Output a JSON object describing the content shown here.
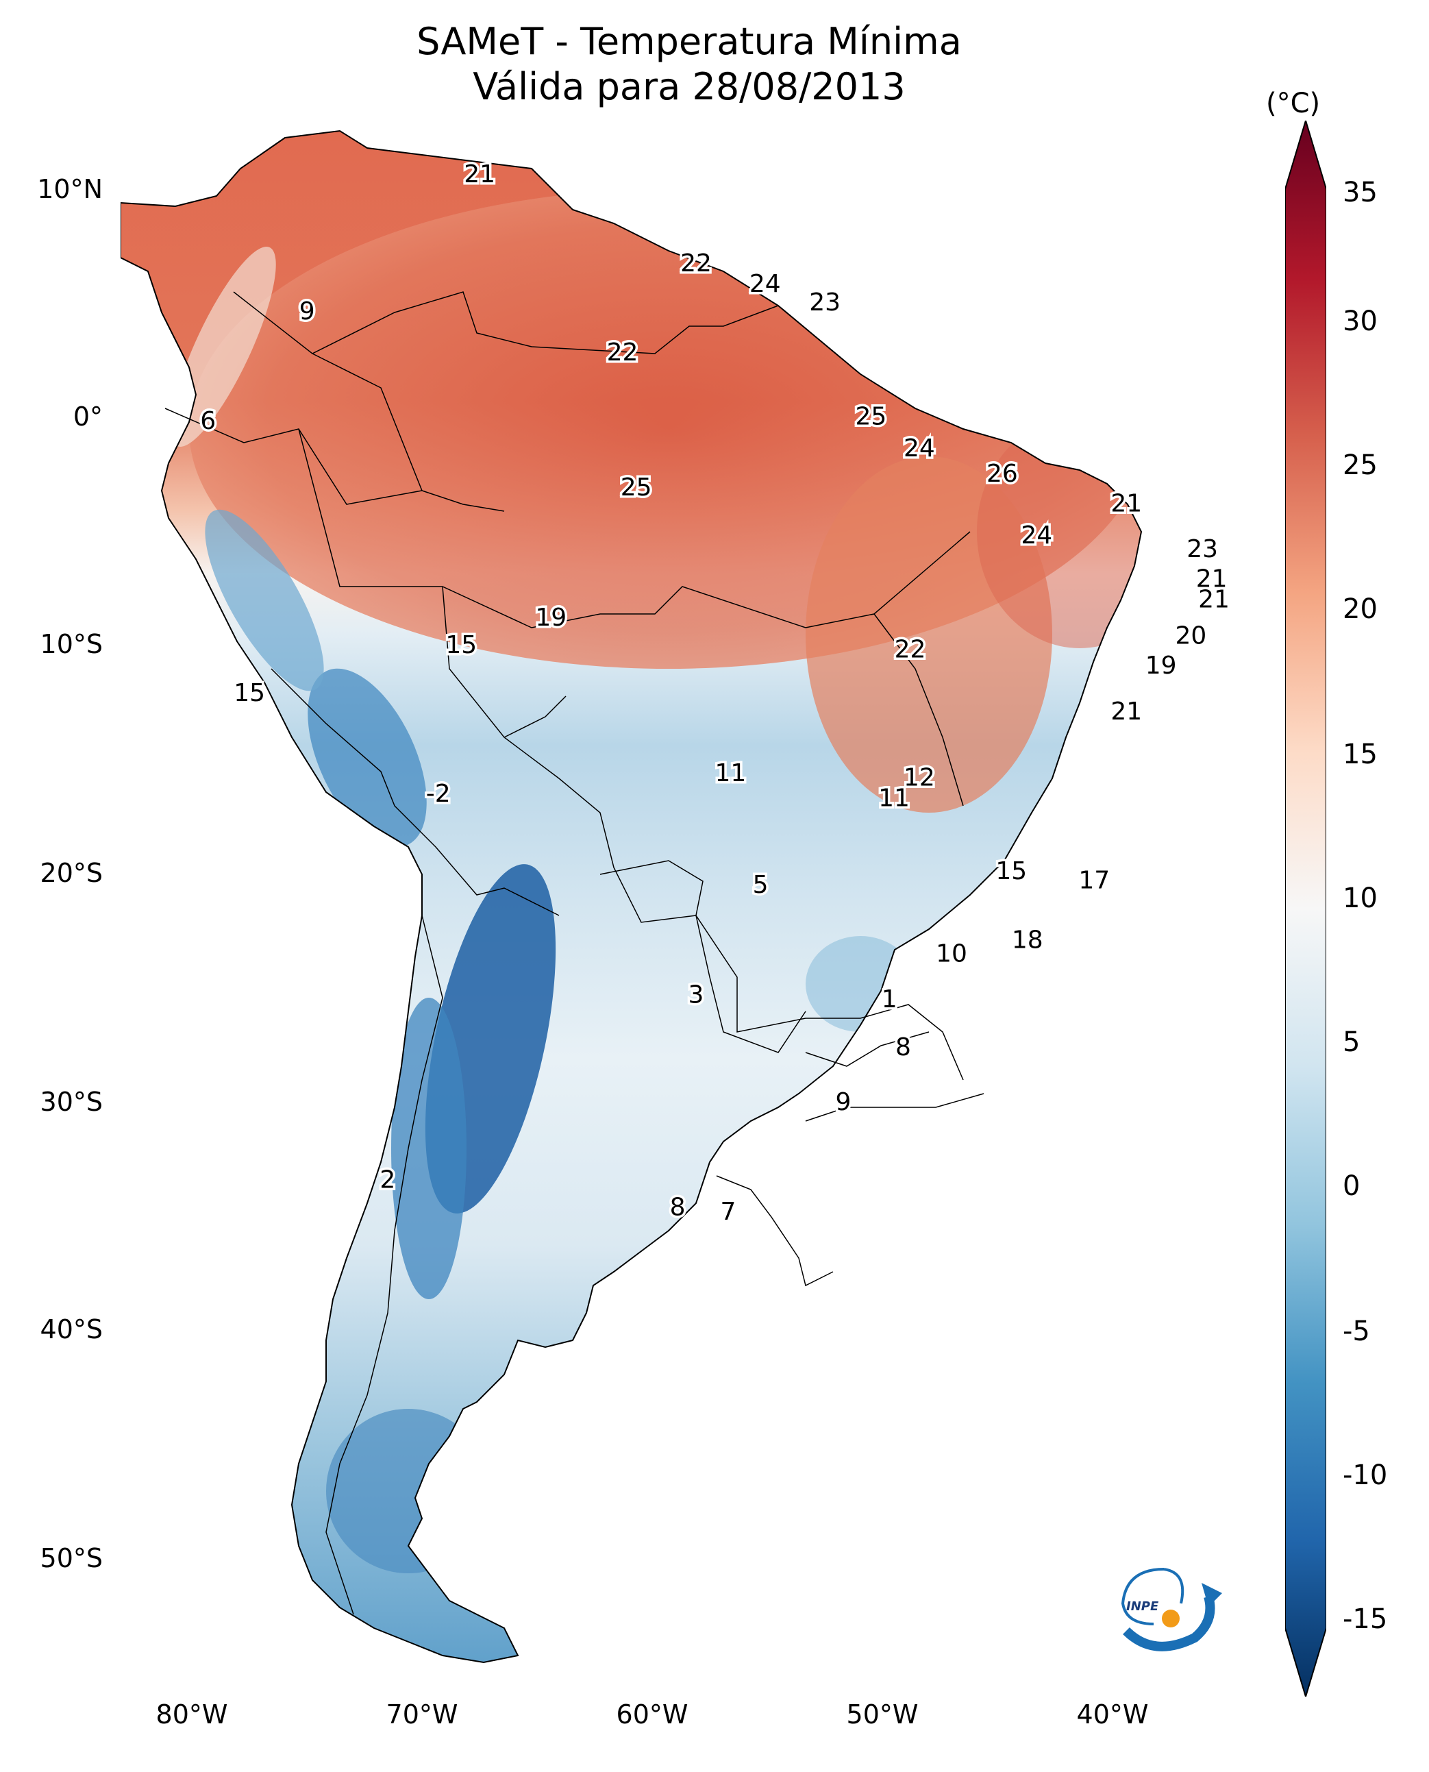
{
  "title": {
    "line1": "SAMeT - Temperatura Mínima",
    "line2": "Válida para 28/08/2013"
  },
  "latitude_labels": [
    "10°N",
    "0°",
    "10°S",
    "20°S",
    "30°S",
    "40°S",
    "50°S"
  ],
  "longitude_labels": [
    "80°W",
    "70°W",
    "60°W",
    "50°W",
    "40°W"
  ],
  "colorbar": {
    "unit": "(°C)",
    "ticks": [
      "35",
      "30",
      "25",
      "20",
      "15",
      "10",
      "5",
      "0",
      "-5",
      "-10",
      "-15"
    ],
    "colors": [
      "#67001f",
      "#b2182b",
      "#d6604d",
      "#f4a582",
      "#fddbc7",
      "#f7f7f7",
      "#d1e5f0",
      "#92c5de",
      "#4393c3",
      "#2166ac",
      "#053061"
    ]
  },
  "station_values": [
    {
      "label": "21",
      "lon": -67,
      "lat": 10.6
    },
    {
      "label": "9",
      "lon": -74.5,
      "lat": 4.6
    },
    {
      "label": "22",
      "lon": -57.6,
      "lat": 6.7
    },
    {
      "label": "24",
      "lon": -54.6,
      "lat": 5.8
    },
    {
      "label": "23",
      "lon": -52,
      "lat": 5.0
    },
    {
      "label": "22",
      "lon": -60.8,
      "lat": 2.8
    },
    {
      "label": "6",
      "lon": -78.8,
      "lat": -0.2
    },
    {
      "label": "25",
      "lon": -50,
      "lat": 0.0
    },
    {
      "label": "24",
      "lon": -47.9,
      "lat": -1.4
    },
    {
      "label": "26",
      "lon": -44.3,
      "lat": -2.5
    },
    {
      "label": "25",
      "lon": -60.2,
      "lat": -3.1
    },
    {
      "label": "21",
      "lon": -38.9,
      "lat": -3.8
    },
    {
      "label": "24",
      "lon": -42.8,
      "lat": -5.2
    },
    {
      "label": "23",
      "lon": -35.6,
      "lat": -5.8
    },
    {
      "label": "21",
      "lon": -35.2,
      "lat": -7.1
    },
    {
      "label": "21",
      "lon": -35.1,
      "lat": -8.0
    },
    {
      "label": "19",
      "lon": -63.9,
      "lat": -8.8
    },
    {
      "label": "20",
      "lon": -36.1,
      "lat": -9.6
    },
    {
      "label": "15",
      "lon": -67.8,
      "lat": -10.0
    },
    {
      "label": "22",
      "lon": -48.3,
      "lat": -10.2
    },
    {
      "label": "19",
      "lon": -37.4,
      "lat": -10.9
    },
    {
      "label": "15",
      "lon": -77,
      "lat": -12.1
    },
    {
      "label": "21",
      "lon": -38.9,
      "lat": -12.9
    },
    {
      "label": "11",
      "lon": -56.1,
      "lat": -15.6
    },
    {
      "label": "12",
      "lon": -47.9,
      "lat": -15.8
    },
    {
      "label": "11",
      "lon": -49.0,
      "lat": -16.7
    },
    {
      "label": "-2",
      "lon": -68.8,
      "lat": -16.5
    },
    {
      "label": "15",
      "lon": -43.9,
      "lat": -19.9
    },
    {
      "label": "17",
      "lon": -40.3,
      "lat": -20.3
    },
    {
      "label": "5",
      "lon": -54.8,
      "lat": -20.5
    },
    {
      "label": "18",
      "lon": -43.2,
      "lat": -22.9
    },
    {
      "label": "10",
      "lon": -46.5,
      "lat": -23.5
    },
    {
      "label": "3",
      "lon": -57.6,
      "lat": -25.3
    },
    {
      "label": "1",
      "lon": -49.2,
      "lat": -25.5
    },
    {
      "label": "8",
      "lon": -48.6,
      "lat": -27.6
    },
    {
      "label": "9",
      "lon": -51.2,
      "lat": -30.0
    },
    {
      "label": "2",
      "lon": -71.0,
      "lat": -33.4
    },
    {
      "label": "8",
      "lon": -58.4,
      "lat": -34.6
    },
    {
      "label": "7",
      "lon": -56.2,
      "lat": -34.8
    }
  ],
  "logo_text": "INPE"
}
